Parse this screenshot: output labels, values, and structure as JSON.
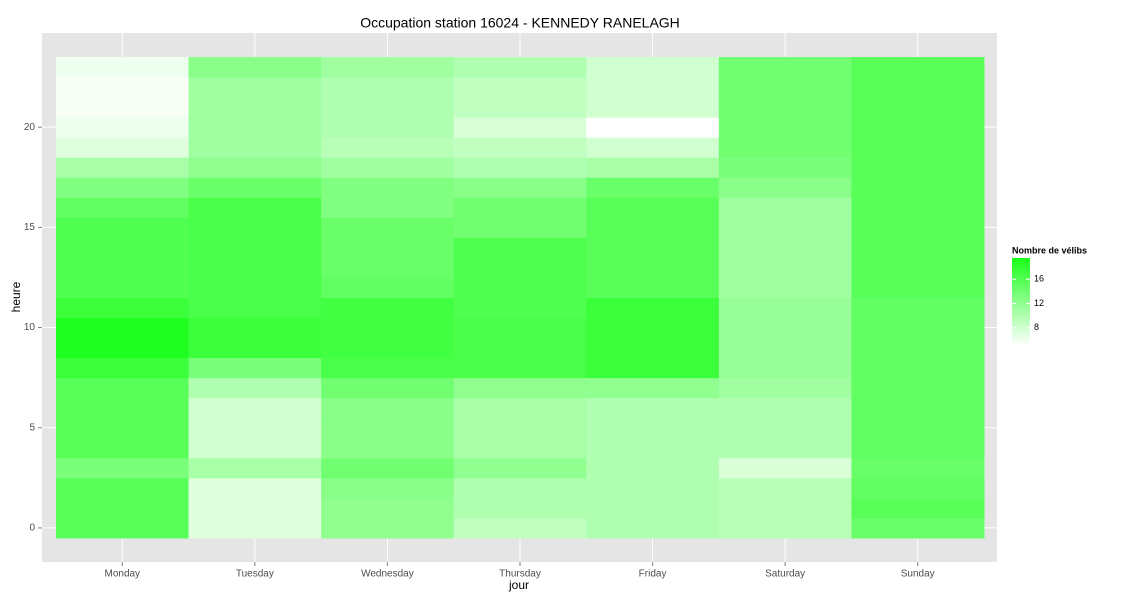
{
  "chart_data": {
    "type": "heatmap",
    "title": "Occupation station 16024 - KENNEDY RANELAGH",
    "x_label": "jour",
    "y_label": "heure",
    "categories": [
      "Monday",
      "Tuesday",
      "Wednesday",
      "Thursday",
      "Friday",
      "Saturday",
      "Sunday"
    ],
    "y": [
      0,
      1,
      2,
      3,
      4,
      5,
      6,
      7,
      8,
      9,
      10,
      11,
      12,
      13,
      14,
      15,
      16,
      17,
      18,
      19,
      20,
      21,
      22,
      23
    ],
    "values": [
      [
        15.5,
        15.5,
        15.5,
        13.5,
        15.5,
        15.5,
        15.5,
        15.5,
        17.5,
        19.2,
        19.2,
        17.5,
        16,
        16,
        16,
        16,
        15,
        13,
        10.5,
        7,
        6,
        5.5,
        5.5,
        6
      ],
      [
        7,
        7,
        7,
        10.5,
        8,
        8,
        8,
        10,
        13.5,
        17.5,
        17.5,
        16.5,
        16.5,
        16.5,
        16.5,
        16.5,
        16.5,
        14.5,
        12,
        11,
        11,
        11,
        11,
        12.5
      ],
      [
        12,
        12,
        12.5,
        14,
        12.5,
        12.5,
        12.5,
        14,
        16.5,
        17,
        17,
        17,
        15,
        14.5,
        14.5,
        14.5,
        13,
        13,
        11,
        9.5,
        10,
        10,
        10,
        11
      ],
      [
        9,
        10,
        10,
        12,
        10.5,
        10.5,
        10.5,
        12,
        16.5,
        16.5,
        16.5,
        16,
        16,
        16,
        16,
        14,
        14,
        12.5,
        10,
        9,
        7.5,
        9,
        9,
        10
      ],
      [
        10,
        10,
        10,
        10,
        10,
        10,
        10,
        12,
        17.5,
        17.5,
        17.5,
        17.5,
        15.5,
        15.5,
        15.5,
        15.5,
        15.5,
        14.5,
        10.5,
        8,
        5,
        8,
        8,
        8
      ],
      [
        9.5,
        9.5,
        9.5,
        7.5,
        10,
        10,
        10,
        11,
        11.5,
        11.5,
        11.5,
        11.5,
        11,
        11,
        11,
        11,
        11,
        12.5,
        13.5,
        14,
        14,
        14,
        14,
        14
      ],
      [
        14.5,
        15.5,
        15,
        14.5,
        15,
        15,
        15,
        15,
        15,
        15,
        15,
        15,
        15.5,
        15.5,
        15.5,
        15.5,
        15.5,
        15.5,
        15.5,
        15.5,
        15.5,
        15.5,
        15.5,
        15.5
      ]
    ],
    "ylim": [
      -1.7,
      24.7
    ],
    "yticks": [
      0,
      5,
      10,
      15,
      20
    ],
    "grid": true,
    "legend": {
      "title": "Nombre de vélibs",
      "limits": [
        5,
        19.5
      ],
      "ticks": [
        8,
        12,
        16
      ],
      "low": "#ffffff",
      "high": "#1aff1a"
    }
  }
}
